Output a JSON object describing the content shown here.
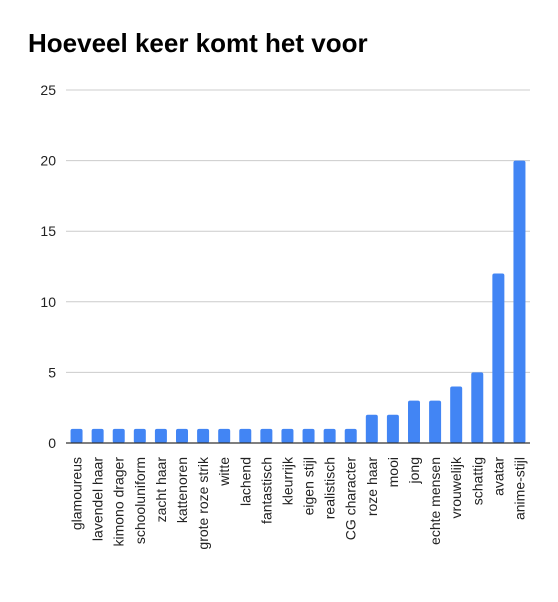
{
  "chart_data": {
    "type": "bar",
    "title": "Hoeveel keer komt het voor",
    "categories": [
      "glamoureus",
      "lavendel haar",
      "kimono drager",
      "schooluniform",
      "zacht haar",
      "kattenoren",
      "grote roze strik",
      "witte",
      "lachend",
      "fantastisch",
      "kleurrijk",
      "eigen stijl",
      "realistisch",
      "CG character",
      "roze haar",
      "mooi",
      "jong",
      "echte mensen",
      "vrouwelijk",
      "schattig",
      "avatar",
      "anime-stijl"
    ],
    "values": [
      1,
      1,
      1,
      1,
      1,
      1,
      1,
      1,
      1,
      1,
      1,
      1,
      1,
      1,
      2,
      2,
      3,
      3,
      4,
      5,
      12,
      20
    ],
    "ylim": [
      0,
      25
    ],
    "yticks": [
      0,
      5,
      10,
      15,
      20,
      25
    ],
    "xlabel": "",
    "ylabel": "",
    "grid": true,
    "bar_color": "#4285f4",
    "grid_color": "#cccccc",
    "axis_color": "#333333"
  }
}
